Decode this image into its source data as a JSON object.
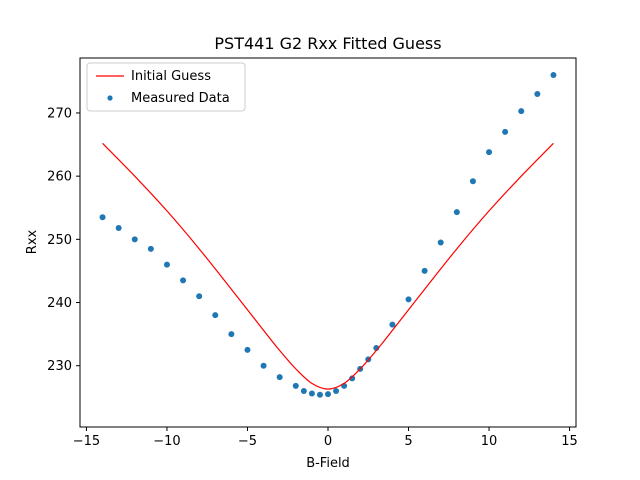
{
  "chart_data": {
    "type": "scatter",
    "title": "PST441 G2 Rxx Fitted Guess",
    "xlabel": "B-Field",
    "ylabel": "Rxx",
    "xlim": [
      -15.4,
      15.4
    ],
    "ylim": [
      220.3,
      278.7
    ],
    "xticks": [
      -15,
      -10,
      -5,
      0,
      5,
      10,
      15
    ],
    "yticks": [
      230,
      240,
      250,
      260,
      270
    ],
    "grid": false,
    "legend_position": "top-left",
    "colors": {
      "line": "#ff0000",
      "points": "#1f77b4"
    },
    "series": [
      {
        "name": "Initial Guess",
        "kind": "line",
        "x": [
          -14,
          -12,
          -10,
          -8,
          -6,
          -4,
          -3,
          -2,
          -1,
          0,
          1,
          2,
          3,
          4,
          6,
          8,
          10,
          12,
          14
        ],
        "y": [
          265.2,
          260.0,
          254.5,
          248.5,
          242.1,
          235.6,
          232.4,
          229.5,
          227.2,
          226.3,
          227.2,
          229.5,
          232.4,
          235.6,
          242.1,
          248.5,
          254.5,
          260.0,
          265.2
        ]
      },
      {
        "name": "Measured Data",
        "kind": "scatter",
        "x": [
          -14,
          -13,
          -12,
          -11,
          -10,
          -9,
          -8,
          -7,
          -6,
          -5,
          -4,
          -3,
          -2,
          -1.5,
          -1,
          -0.5,
          0,
          0.5,
          1,
          1.5,
          2,
          2.5,
          3,
          4,
          5,
          6,
          7,
          8,
          9,
          10,
          11,
          12,
          13,
          14
        ],
        "y": [
          253.5,
          251.8,
          250.0,
          248.5,
          246.0,
          243.5,
          241.0,
          238.0,
          235.0,
          232.5,
          230.0,
          228.2,
          226.8,
          226.0,
          225.6,
          225.4,
          225.5,
          226.0,
          226.8,
          228.0,
          229.5,
          231.0,
          232.8,
          236.5,
          240.5,
          245.0,
          249.5,
          254.3,
          259.2,
          263.8,
          267.0,
          270.3,
          273.0,
          276.0
        ]
      }
    ]
  }
}
